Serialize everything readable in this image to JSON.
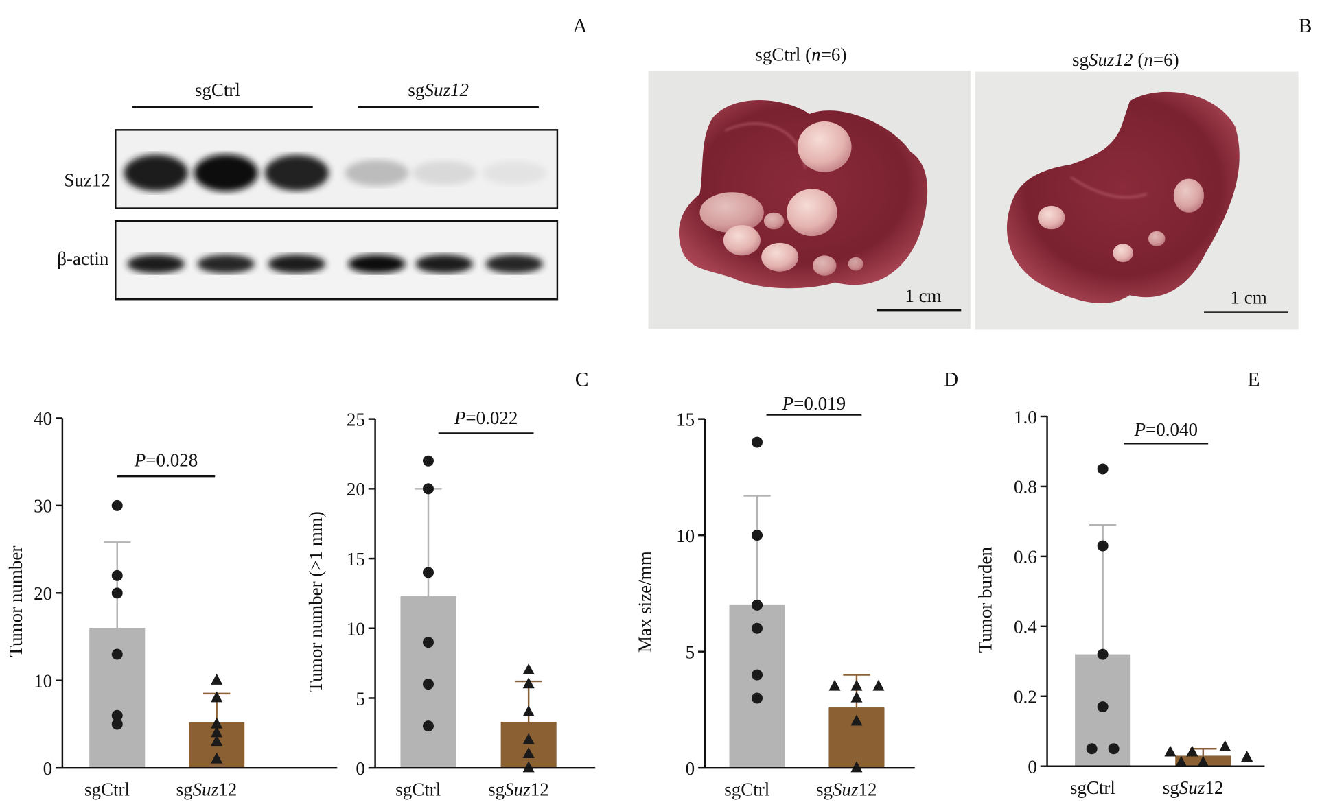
{
  "panel_letters": {
    "a": "A",
    "b": "B",
    "c": "C",
    "d": "D",
    "e": "E"
  },
  "western_blot": {
    "groups": [
      {
        "prefix": "sg",
        "name": "Ctrl",
        "italic": false
      },
      {
        "prefix": "sg",
        "name": "Suz12",
        "italic": true
      }
    ],
    "rows": [
      {
        "label": "Suz12",
        "band_intensity": [
          0.95,
          1.0,
          0.92,
          0.25,
          0.12,
          0.08
        ]
      },
      {
        "label": "β-actin",
        "band_intensity": [
          0.95,
          0.9,
          0.95,
          1.0,
          0.95,
          0.9
        ]
      }
    ]
  },
  "liver_photos": [
    {
      "prefix": "sgCtrl",
      "prefix_italic": false,
      "n_label": "n",
      "n_value": "=6",
      "scale_bar": "1 cm"
    },
    {
      "prefix": "sg",
      "gene": "Suz12",
      "n_label": "n",
      "n_value": "=6",
      "scale_bar": "1 cm"
    }
  ],
  "colors": {
    "ctrl_bar": "#b3b4b3",
    "suz12_bar": "#8b6134",
    "ctrl_err": "#b3b4b3",
    "suz12_err": "#8b6134",
    "points": "#1a1a1a"
  },
  "chart_data": [
    {
      "type": "bar",
      "panel": "C",
      "ylabel": "Tumor number",
      "ylim": [
        0,
        40
      ],
      "yticks": [
        "0",
        "10",
        "20",
        "30",
        "40"
      ],
      "categories": [
        {
          "prefix": "sg",
          "name": "Ctrl",
          "italic": false
        },
        {
          "prefix": "sg",
          "name": "Suz",
          "suffix": "12",
          "italic": true
        }
      ],
      "means": [
        16,
        5.2
      ],
      "sd_upper": [
        25.8,
        8.5
      ],
      "points": [
        [
          30,
          22,
          20,
          13,
          6,
          5
        ],
        [
          10,
          8,
          5,
          4,
          3,
          1
        ]
      ],
      "p_value": {
        "label": "P",
        "value": "=0.028"
      }
    },
    {
      "type": "bar",
      "panel": "C",
      "ylabel": "Tumor number (>1 mm)",
      "ylim": [
        0,
        25
      ],
      "yticks": [
        "0",
        "5",
        "10",
        "15",
        "20",
        "25"
      ],
      "categories": [
        {
          "prefix": "sg",
          "name": "Ctrl",
          "italic": false
        },
        {
          "prefix": "sg",
          "name": "Suz",
          "suffix": "12",
          "italic": true
        }
      ],
      "means": [
        12.3,
        3.3
      ],
      "sd_upper": [
        20,
        6.2
      ],
      "points": [
        [
          22,
          20,
          14,
          9,
          6,
          3
        ],
        [
          7,
          6,
          4,
          2,
          1,
          0
        ]
      ],
      "p_value": {
        "label": "P",
        "value": "=0.022"
      }
    },
    {
      "type": "bar",
      "panel": "D",
      "ylabel": "Max size/mm",
      "ylim": [
        0,
        15
      ],
      "yticks": [
        "0",
        "5",
        "10",
        "15"
      ],
      "categories": [
        {
          "prefix": "sg",
          "name": "Ctrl",
          "italic": false
        },
        {
          "prefix": "sg",
          "name": "Suz",
          "suffix": "12",
          "italic": true
        }
      ],
      "means": [
        7,
        2.6
      ],
      "sd_upper": [
        11.7,
        4
      ],
      "points": [
        [
          14,
          10,
          7,
          6,
          4,
          3
        ],
        [
          3.5,
          3.5,
          3.5,
          3,
          2,
          0
        ]
      ],
      "p_value": {
        "label": "P",
        "value": "=0.019"
      }
    },
    {
      "type": "bar",
      "panel": "E",
      "ylabel": "Tumor burden",
      "ylim": [
        0,
        1
      ],
      "yticks": [
        "0",
        "0.2",
        "0.4",
        "0.6",
        "0.8",
        "1.0"
      ],
      "categories": [
        {
          "prefix": "sg",
          "name": "Ctrl",
          "italic": false
        },
        {
          "prefix": "sg",
          "name": "Suz",
          "suffix": "12",
          "italic": true
        }
      ],
      "means": [
        0.32,
        0.03
      ],
      "sd_upper": [
        0.69,
        0.05
      ],
      "points": [
        [
          0.85,
          0.63,
          0.32,
          0.17,
          0.05,
          0.05
        ],
        [
          0.04,
          0.01,
          0.04,
          0.01,
          0.055,
          0.025
        ]
      ],
      "p_value": {
        "label": "P",
        "value": "=0.040"
      }
    }
  ]
}
